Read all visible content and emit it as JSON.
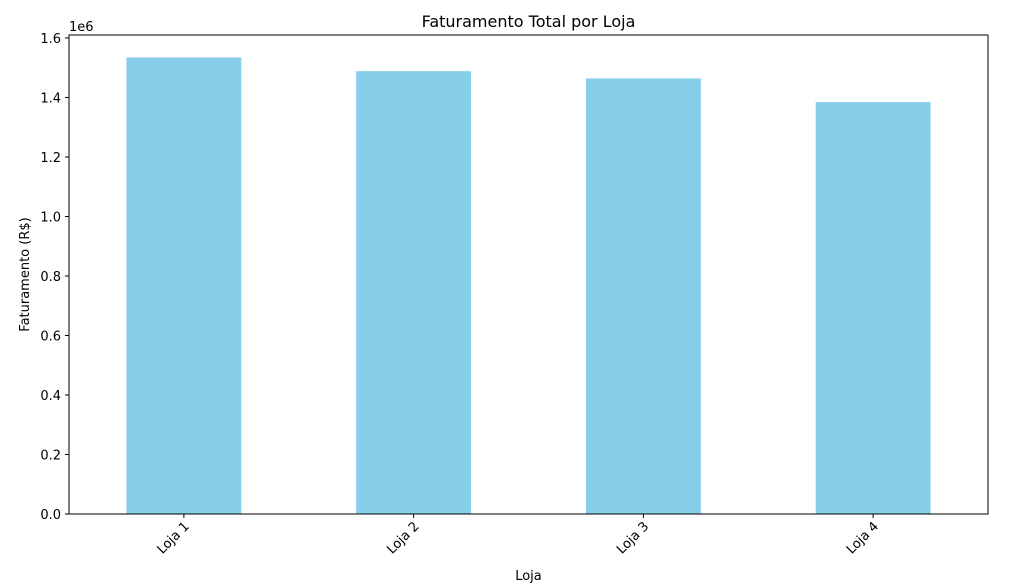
{
  "chart_data": {
    "type": "bar",
    "title": "Faturamento Total por Loja",
    "xlabel": "Loja",
    "ylabel": "Faturamento (R$)",
    "y_offset_label": "1e6",
    "categories": [
      "Loja 1",
      "Loja 2",
      "Loja 3",
      "Loja 4"
    ],
    "values": [
      1534509,
      1488459,
      1464025,
      1384497
    ],
    "ylim": [
      0,
      1610000
    ],
    "yticks": [
      0,
      200000,
      400000,
      600000,
      800000,
      1000000,
      1200000,
      1400000,
      1600000
    ],
    "ytick_labels": [
      "0.0",
      "0.2",
      "0.4",
      "0.6",
      "0.8",
      "1.0",
      "1.2",
      "1.4",
      "1.6"
    ],
    "bar_color": "#87ceeb",
    "grid": false,
    "legend": "none"
  }
}
